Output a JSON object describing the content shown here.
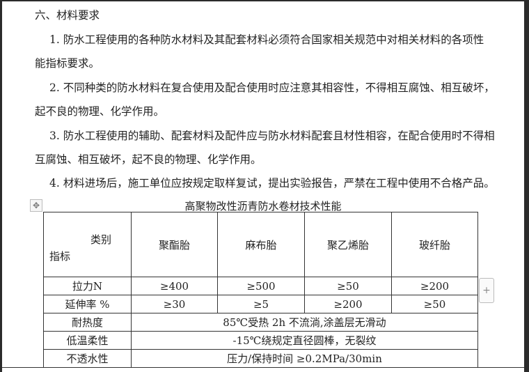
{
  "section_title": "六、材料要求",
  "paragraphs": [
    {
      "lines": [
        "1. 防水工程使用的各种防水材料及其配套材料必须符合国家相关规范中对相关材料的各项性",
        "能指标要求。"
      ]
    },
    {
      "lines": [
        "2. 不同种类的防水材料在复合使用及配合使用时应注意其相容性，不得相互腐蚀、相互破坏，",
        "起不良的物理、化学作用。"
      ]
    },
    {
      "lines": [
        "3. 防水工程使用的辅助、配套材料及配件应与防水材料配套且材性相容，在配合使用时不得相",
        "互腐蚀、相互破坏，起不良的物理、化学作用。"
      ]
    },
    {
      "lines": [
        "4.  材料进场后，施工单位应按规定取样复试，提出实验报告，严禁在工程中使用不合格产品。"
      ]
    }
  ],
  "table": {
    "caption": "高聚物改性沥青防水卷材技术性能",
    "corner_top": "类别",
    "corner_bottom": "指标",
    "columns": [
      "聚酯胎",
      "麻布胎",
      "聚乙烯胎",
      "玻纤胎"
    ],
    "rows": [
      {
        "label": "拉力N",
        "values": [
          "≥400",
          "≥500",
          "≥50",
          "≥200"
        ]
      },
      {
        "label": "延伸率 %",
        "values": [
          "≥30",
          "≥5",
          "≥200",
          "≥50"
        ]
      }
    ],
    "merged_rows": [
      {
        "label": "耐热度",
        "value": "85℃受热 2h 不流淌,涂盖层无滑动"
      },
      {
        "label": "低温柔性",
        "value": "-15℃绕规定直径圆棒，无裂纹"
      },
      {
        "label": "不透水性",
        "value": "压力/保持时间 ≥0.2MPa/30min"
      }
    ]
  },
  "icons": {
    "move": "move-handle-icon",
    "add_row": "plus-icon"
  }
}
